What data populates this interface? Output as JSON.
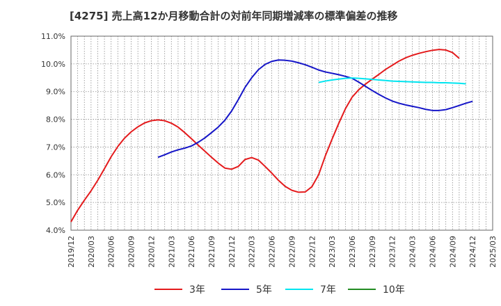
{
  "chart_data": {
    "type": "line",
    "title": "[4275]  売上高12か月移動合計の対前年同期増減率の標準偏差の推移",
    "xlabel": "",
    "ylabel": "",
    "x_tick_labels": [
      "2019/12",
      "2020/03",
      "2020/06",
      "2020/09",
      "2020/12",
      "2021/03",
      "2021/06",
      "2021/09",
      "2021/12",
      "2022/03",
      "2022/06",
      "2022/09",
      "2022/12",
      "2023/03",
      "2023/06",
      "2023/09",
      "2023/12",
      "2024/03",
      "2024/06",
      "2024/09",
      "2024/12",
      "2025/03"
    ],
    "y_tick_labels": [
      "4.0%",
      "5.0%",
      "6.0%",
      "7.0%",
      "8.0%",
      "9.0%",
      "10.0%",
      "11.0%"
    ],
    "ylim": [
      4.0,
      11.0
    ],
    "grid": true,
    "legend_position": "bottom",
    "series": [
      {
        "name": "3年",
        "color": "#e41a1c",
        "start_index": 0,
        "values": [
          4.3,
          4.72,
          5.08,
          5.42,
          5.8,
          6.22,
          6.65,
          7.02,
          7.32,
          7.55,
          7.73,
          7.87,
          7.95,
          7.98,
          7.95,
          7.86,
          7.72,
          7.52,
          7.3,
          7.07,
          6.85,
          6.63,
          6.42,
          6.24,
          6.2,
          6.3,
          6.55,
          6.62,
          6.53,
          6.3,
          6.06,
          5.8,
          5.58,
          5.44,
          5.37,
          5.38,
          5.57,
          6.0,
          6.68,
          7.28,
          7.85,
          8.38,
          8.8,
          9.07,
          9.27,
          9.45,
          9.62,
          9.8,
          9.95,
          10.1,
          10.22,
          10.31,
          10.38,
          10.44,
          10.49,
          10.52,
          10.5,
          10.41,
          10.2
        ]
      },
      {
        "name": "5年",
        "color": "#1515c8",
        "start_index": 13,
        "values": [
          6.63,
          6.72,
          6.82,
          6.9,
          6.96,
          7.04,
          7.17,
          7.33,
          7.52,
          7.72,
          7.97,
          8.3,
          8.71,
          9.15,
          9.5,
          9.79,
          9.98,
          10.09,
          10.14,
          10.13,
          10.1,
          10.04,
          9.97,
          9.88,
          9.78,
          9.71,
          9.66,
          9.61,
          9.55,
          9.48,
          9.34,
          9.19,
          9.04,
          8.9,
          8.77,
          8.66,
          8.58,
          8.52,
          8.47,
          8.42,
          8.36,
          8.32,
          8.32,
          8.35,
          8.42,
          8.5,
          8.58,
          8.65
        ]
      },
      {
        "name": "7年",
        "color": "#00e5f0",
        "start_index": 37,
        "values": [
          9.33,
          9.38,
          9.42,
          9.45,
          9.48,
          9.49,
          9.48,
          9.46,
          9.44,
          9.42,
          9.4,
          9.38,
          9.37,
          9.36,
          9.35,
          9.34,
          9.33,
          9.33,
          9.32,
          9.32,
          9.31,
          9.3,
          9.28
        ]
      },
      {
        "name": "10年",
        "color": "#228b22",
        "start_index": 0,
        "values": []
      }
    ]
  }
}
